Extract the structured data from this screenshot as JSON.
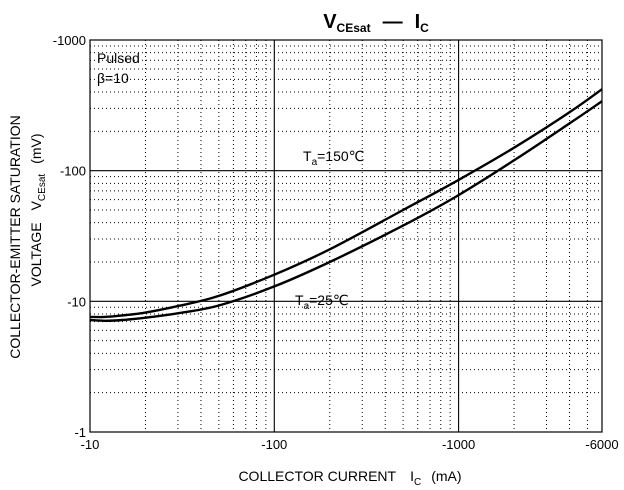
{
  "chart_data": {
    "type": "line",
    "title": {
      "y_symbol": "V",
      "y_sub": "CEsat",
      "dash": "—",
      "x_symbol": "I",
      "x_sub": "C"
    },
    "xlabel": {
      "main": "COLLECTOR CURRENT",
      "sym": "I",
      "sub": "C",
      "unit": "(mA)"
    },
    "ylabel": {
      "line1": "COLLECTOR-EMITTER SATURATION",
      "line2": "VOLTAGE",
      "sym": "V",
      "sub": "CEsat",
      "unit": "(mV)"
    },
    "x_scale": "log",
    "y_scale": "log",
    "xlim": [
      10,
      6000
    ],
    "ylim": [
      1,
      1000
    ],
    "x_ticks": [
      {
        "value": 10,
        "label": "-10"
      },
      {
        "value": 100,
        "label": "-100"
      },
      {
        "value": 1000,
        "label": "-1000"
      },
      {
        "value": 6000,
        "label": "-6000"
      }
    ],
    "y_ticks": [
      {
        "value": 1,
        "label": "-1"
      },
      {
        "value": 10,
        "label": "-10"
      },
      {
        "value": 100,
        "label": "-100"
      },
      {
        "value": 1000,
        "label": "-1000"
      }
    ],
    "grid": true,
    "conditions": [
      "Pulsed",
      "β=10"
    ],
    "series": [
      {
        "label_prefix": "T",
        "label_sub": "a",
        "label_suffix": "=150℃",
        "x": [
          10,
          12,
          15,
          20,
          30,
          50,
          100,
          200,
          500,
          1000,
          2000,
          4000,
          6000
        ],
        "y": [
          7.6,
          7.6,
          7.8,
          8.2,
          9.2,
          11,
          16,
          25,
          50,
          85,
          150,
          280,
          420
        ]
      },
      {
        "label_prefix": "T",
        "label_sub": "a",
        "label_suffix": "=25℃",
        "x": [
          10,
          12,
          15,
          20,
          30,
          50,
          100,
          200,
          500,
          1000,
          2000,
          4000,
          6000
        ],
        "y": [
          7.2,
          7.1,
          7.2,
          7.5,
          8.1,
          9.3,
          13,
          20,
          38,
          65,
          120,
          230,
          340
        ]
      }
    ]
  }
}
